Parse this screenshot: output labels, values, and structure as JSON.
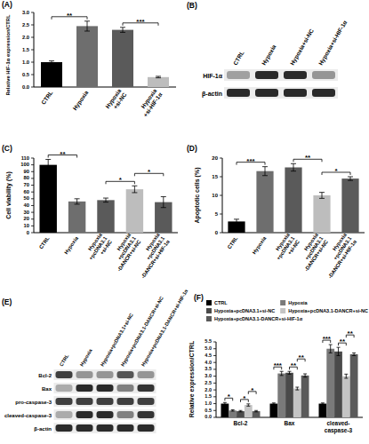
{
  "chart_data": [
    {
      "type": "bar",
      "title": "(A)",
      "y_label": "Relative HIF-1α expression/CTRL",
      "categories": [
        "CTRL",
        "Hypoxia",
        "Hypoxia\n+si-NC",
        "Hypoxia\n+si-HIF-1α"
      ],
      "values": [
        1.0,
        2.45,
        2.3,
        0.4
      ],
      "errors": [
        0.05,
        0.2,
        0.1,
        0.03
      ],
      "colors": [
        "#000000",
        "#6e6e6e",
        "#5a5a5a",
        "#bdbdbd"
      ],
      "ylim": [
        0,
        3.0
      ],
      "yticks": [
        {
          "value": 0,
          "label": "0.0"
        },
        0.5,
        {
          "value": 1,
          "label": "1.0"
        },
        1.5,
        {
          "value": 2,
          "label": "2.0"
        },
        2.5,
        {
          "value": 3,
          "label": "3.0"
        }
      ],
      "annotations": [
        {
          "from": 0,
          "to": 1,
          "text": "**"
        },
        {
          "from": 2,
          "to": 3,
          "text": "***"
        }
      ]
    },
    {
      "type": "bar",
      "title": "(C)",
      "y_label": "Cell viability (%)",
      "categories": [
        "CTRL",
        "Hypoxia",
        "Hypoxia\n+pcDNA3.1\n+si-NC",
        "Hypoxia\n+pcDNA3.1\n-DANCR+si-NC",
        "Hypoxia\n+pcDNA3.1\n-DANCR+si-HIF-1α"
      ],
      "values": [
        100,
        46,
        48,
        64,
        45
      ],
      "errors": [
        8,
        4,
        3,
        5,
        8
      ],
      "colors": [
        "#000000",
        "#6e6e6e",
        "#5a5a5a",
        "#bdbdbd",
        "#5a5a5a"
      ],
      "ylim": [
        0,
        110
      ],
      "yticks": [
        0,
        10,
        20,
        30,
        40,
        50,
        60,
        70,
        80,
        90,
        100,
        110
      ],
      "annotations": [
        {
          "from": 0,
          "to": 1,
          "text": "**"
        },
        {
          "from": 2,
          "to": 3,
          "text": "*"
        },
        {
          "from": 3,
          "to": 4,
          "text": "*"
        }
      ]
    },
    {
      "type": "bar",
      "title": "(D)",
      "y_label": "Apoptotic cells (%)",
      "categories": [
        "CTRL",
        "Hypoxia",
        "Hypoxia\n+pcDNA3.1\n+si-NC",
        "Hypoxia\n+pcDNA3.1\n-DANCR+si-NC",
        "Hypoxia\n+pcDNA3.1\n-DANCR+si-HIF-1α"
      ],
      "values": [
        3,
        16.5,
        17.5,
        10,
        14.5
      ],
      "errors": [
        0.6,
        1.2,
        1,
        0.8,
        0.5
      ],
      "colors": [
        "#000000",
        "#6e6e6e",
        "#5a5a5a",
        "#bdbdbd",
        "#5a5a5a"
      ],
      "ylim": [
        0,
        20
      ],
      "yticks": [
        0,
        5,
        10,
        15,
        20
      ],
      "annotations": [
        {
          "from": 0,
          "to": 1,
          "text": "***"
        },
        {
          "from": 2,
          "to": 3,
          "text": "**"
        },
        {
          "from": 3,
          "to": 4,
          "text": "*"
        }
      ]
    },
    {
      "type": "bar",
      "title": "(F)",
      "y_label": "Relative expression/CTRL",
      "legend": "top",
      "categories": [
        "Bcl-2",
        "Bax",
        "cleaved-\ncaspase-3"
      ],
      "series": [
        {
          "name": "CTRL",
          "color": "#000000",
          "values": [
            1.0,
            1.0,
            1.0
          ],
          "errors": [
            0.08,
            0.05,
            0.05
          ]
        },
        {
          "name": "Hypoxia",
          "color": "#7a7a7a",
          "values": [
            0.5,
            3.2,
            5.0
          ],
          "errors": [
            0.05,
            0.15,
            0.3
          ]
        },
        {
          "name": "Hypoxia+pcDNA3.1+si-NC",
          "color": "#4a4a4a",
          "values": [
            0.45,
            3.25,
            4.8
          ],
          "errors": [
            0.05,
            0.1,
            0.3
          ]
        },
        {
          "name": "Hypoxia+pcDNA3.1-DANCR+si-NC",
          "color": "#c4c4c4",
          "values": [
            0.9,
            2.1,
            3.0
          ],
          "errors": [
            0.08,
            0.1,
            0.15
          ]
        },
        {
          "name": "Hypoxia+pcDNA3.1-DANCR+si-HIF-1α",
          "color": "#5a5a5a",
          "values": [
            0.45,
            3.05,
            4.6
          ],
          "errors": [
            0.05,
            0.12,
            0.1
          ]
        }
      ],
      "ylim": [
        0,
        5.5
      ],
      "yticks": [
        {
          "value": 0,
          "label": "0.0"
        },
        0.5,
        {
          "value": 1,
          "label": "1.0"
        },
        1.5,
        {
          "value": 2,
          "label": "2.0"
        },
        2.5,
        {
          "value": 3,
          "label": "3.0"
        },
        3.5,
        {
          "value": 4,
          "label": "4.0"
        },
        4.5,
        {
          "value": 5,
          "label": "5.0"
        },
        5.5
      ],
      "annotations": [
        {
          "category": 0,
          "from": 0,
          "to": 1,
          "text": "*"
        },
        {
          "category": 0,
          "from": 2,
          "to": 3,
          "text": "*"
        },
        {
          "category": 0,
          "from": 3,
          "to": 4,
          "text": "*"
        },
        {
          "category": 1,
          "from": 0,
          "to": 1,
          "text": "***"
        },
        {
          "category": 1,
          "from": 2,
          "to": 3,
          "text": "**"
        },
        {
          "category": 1,
          "from": 3,
          "to": 4,
          "text": "**"
        },
        {
          "category": 2,
          "from": 0,
          "to": 1,
          "text": "***"
        },
        {
          "category": 2,
          "from": 2,
          "to": 3,
          "text": "**"
        },
        {
          "category": 2,
          "from": 3,
          "to": 4,
          "text": "**"
        }
      ]
    }
  ],
  "blots": [
    {
      "title": "(B)",
      "lanes": [
        "CTRL",
        "Hypoxia",
        "Hypoxia+si-NC",
        "Hypoxia+si-HIF-1α"
      ],
      "bands": [
        {
          "name": "HIF-1α",
          "intensity": [
            0.35,
            0.9,
            0.9,
            0.4
          ]
        },
        {
          "name": "β-actin",
          "intensity": [
            0.9,
            0.9,
            0.9,
            0.9
          ]
        }
      ]
    },
    {
      "title": "(E)",
      "lanes": [
        "CTRL",
        "Hypoxia",
        "Hypoxia+pcDNA3.1+si-NC",
        "Hypoxia+pcDNA3.1-DANCR+si-NC",
        "Hypoxia+pcDNA3.1-DANCR+si-HIF-1α"
      ],
      "bands": [
        {
          "name": "Bcl-2",
          "intensity": [
            0.8,
            0.4,
            0.4,
            0.7,
            0.4
          ]
        },
        {
          "name": "Bax",
          "intensity": [
            0.3,
            0.9,
            0.9,
            0.5,
            0.85
          ]
        },
        {
          "name": "pro-caspase-3",
          "intensity": [
            0.8,
            0.8,
            0.8,
            0.8,
            0.8
          ]
        },
        {
          "name": "cleaved-caspase-3",
          "intensity": [
            0.3,
            0.9,
            0.9,
            0.5,
            0.85
          ]
        },
        {
          "name": "β-actin",
          "intensity": [
            0.9,
            0.9,
            0.9,
            0.9,
            0.9
          ]
        }
      ]
    }
  ]
}
